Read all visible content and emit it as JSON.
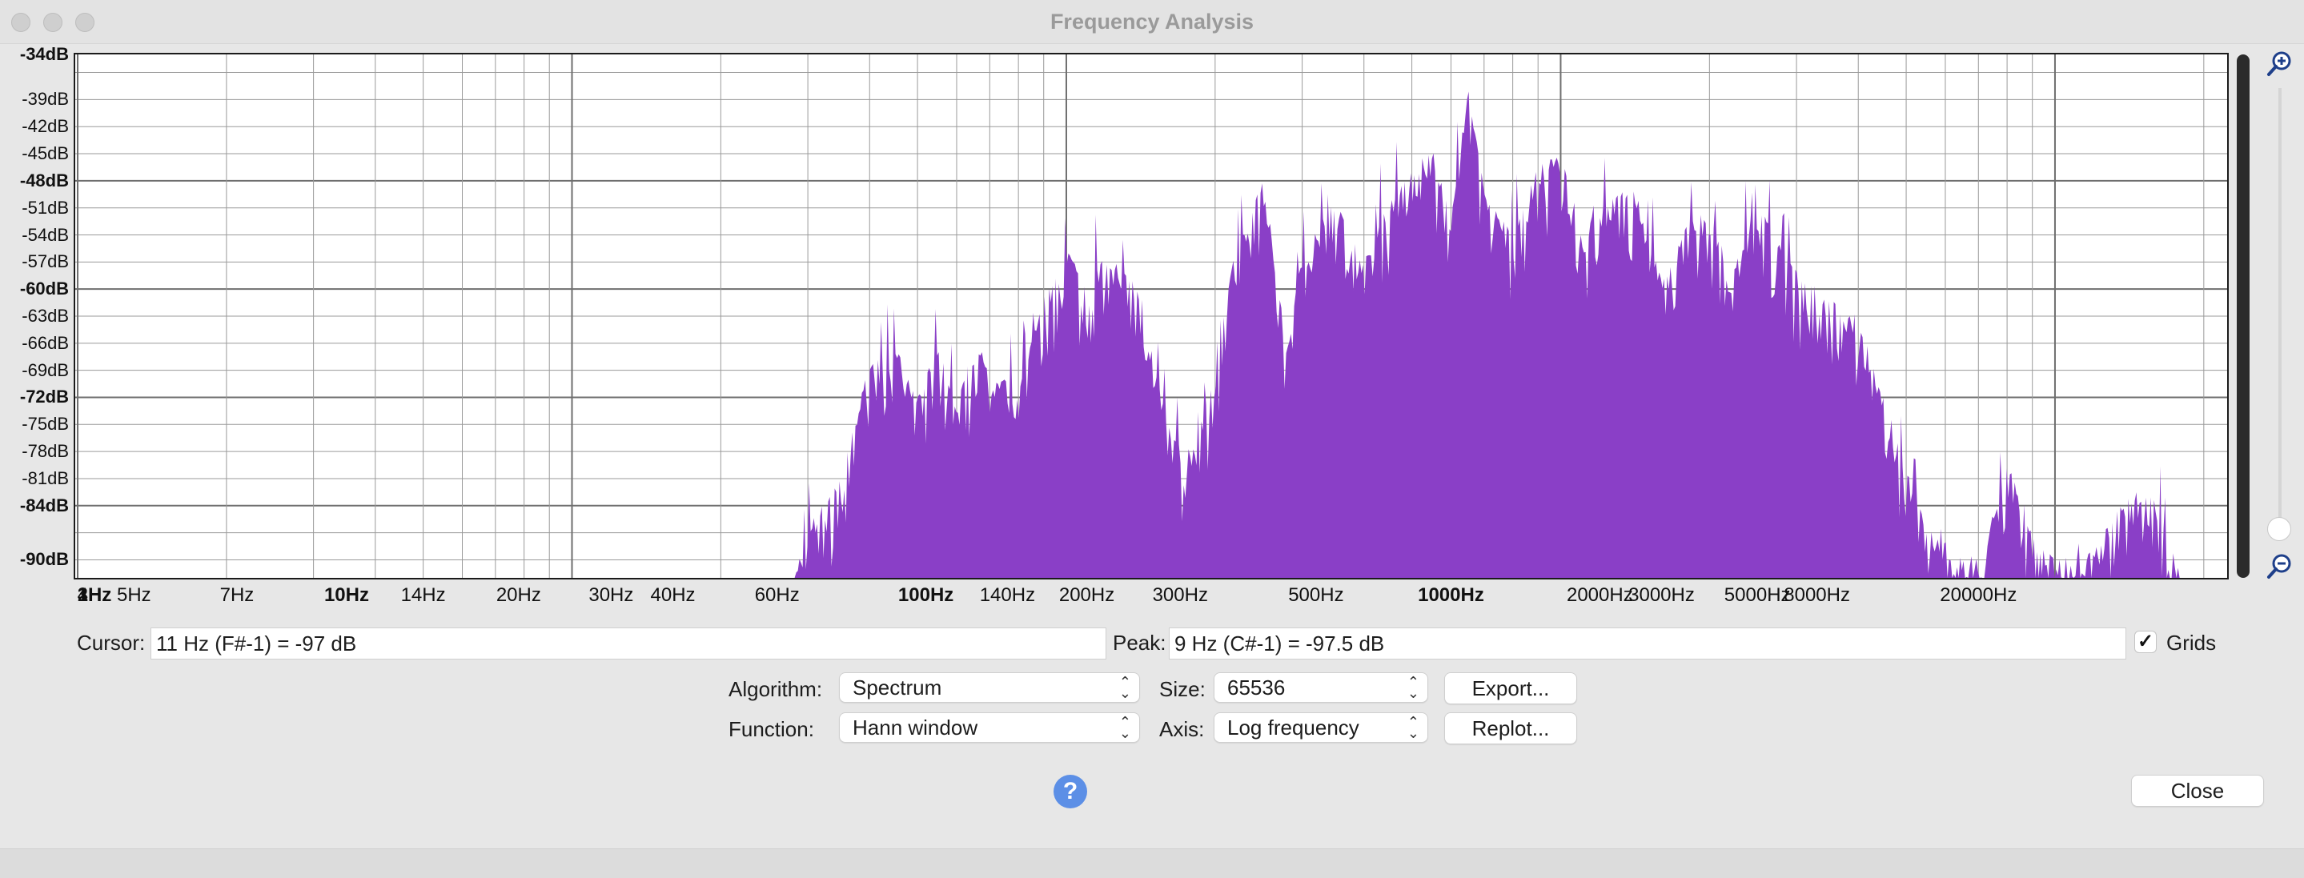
{
  "window": {
    "title": "Frequency Analysis"
  },
  "plot": {
    "y_labels": [
      "-34dB",
      "-39dB",
      "-42dB",
      "-45dB",
      "-48dB",
      "-51dB",
      "-54dB",
      "-57dB",
      "-60dB",
      "-63dB",
      "-66dB",
      "-69dB",
      "-72dB",
      "-75dB",
      "-78dB",
      "-81dB",
      "-84dB",
      "-90dB"
    ],
    "y_major": [
      "-34dB",
      "-48dB",
      "-60dB",
      "-72dB",
      "-84dB",
      "-90dB"
    ],
    "x_labels": [
      "1Hz",
      "1Hz",
      "1Hz",
      "2Hz",
      "2Hz",
      "3Hz",
      "4Hz",
      "5Hz",
      "7Hz",
      "10Hz",
      "14Hz",
      "20Hz",
      "30Hz",
      "40Hz",
      "60Hz",
      "100Hz",
      "140Hz",
      "200Hz",
      "300Hz",
      "500Hz",
      "1000Hz",
      "2000Hz",
      "3000Hz",
      "5000Hz",
      "8000Hz",
      "20000Hz"
    ],
    "x_major": [
      "1Hz",
      "10Hz",
      "100Hz",
      "1000Hz"
    ],
    "fill_color": "#8a3fc7",
    "grid_color": "#9a9a9a"
  },
  "chart_data": {
    "type": "area",
    "xscale": "log",
    "xlim": [
      1,
      22050
    ],
    "ylim": [
      -92,
      -34
    ],
    "xlabel": "",
    "ylabel": "",
    "grid": true,
    "x": [
      28,
      30,
      35,
      40,
      45,
      50,
      55,
      60,
      65,
      70,
      80,
      90,
      100,
      110,
      120,
      140,
      160,
      180,
      200,
      220,
      250,
      280,
      300,
      350,
      400,
      450,
      500,
      550,
      600,
      650,
      700,
      800,
      900,
      1000,
      1100,
      1200,
      1400,
      1600,
      1800,
      2000,
      2200,
      2500,
      2800,
      3000,
      3500,
      4000,
      4500,
      5000,
      5500,
      6000,
      7000,
      8000,
      9000,
      10000,
      12000,
      14000,
      16000,
      18000
    ],
    "y": [
      -92,
      -86,
      -81,
      -68,
      -66,
      -72,
      -66,
      -73,
      -66,
      -69,
      -71,
      -61,
      -55,
      -60,
      -56,
      -59,
      -75,
      -78,
      -69,
      -55,
      -48,
      -66,
      -56,
      -50,
      -57,
      -50,
      -47,
      -44,
      -52,
      -37,
      -49,
      -54,
      -46,
      -45,
      -53,
      -51,
      -48,
      -59,
      -53,
      -51,
      -58,
      -50,
      -55,
      -58,
      -61,
      -63,
      -72,
      -80,
      -86,
      -88,
      -90,
      -79,
      -87,
      -90,
      -89,
      -82,
      -83,
      -92
    ]
  },
  "cursor": {
    "label": "Cursor:",
    "value": "11 Hz (F#-1) = -97 dB"
  },
  "peak": {
    "label": "Peak:",
    "value": "9 Hz (C#-1) = -97.5 dB"
  },
  "grids": {
    "label": "Grids",
    "checked": true,
    "check_glyph": "✓"
  },
  "algorithm": {
    "label": "Algorithm:",
    "value": "Spectrum"
  },
  "size": {
    "label": "Size:",
    "value": "65536"
  },
  "function": {
    "label": "Function:",
    "value": "Hann window"
  },
  "axis": {
    "label": "Axis:",
    "value": "Log frequency"
  },
  "buttons": {
    "export": "Export...",
    "replot": "Replot...",
    "close": "Close",
    "help": "?"
  },
  "icons": {
    "zoom_in": "zoom-in-icon",
    "zoom_out": "zoom-out-icon",
    "stepper": "⌃⌄"
  }
}
